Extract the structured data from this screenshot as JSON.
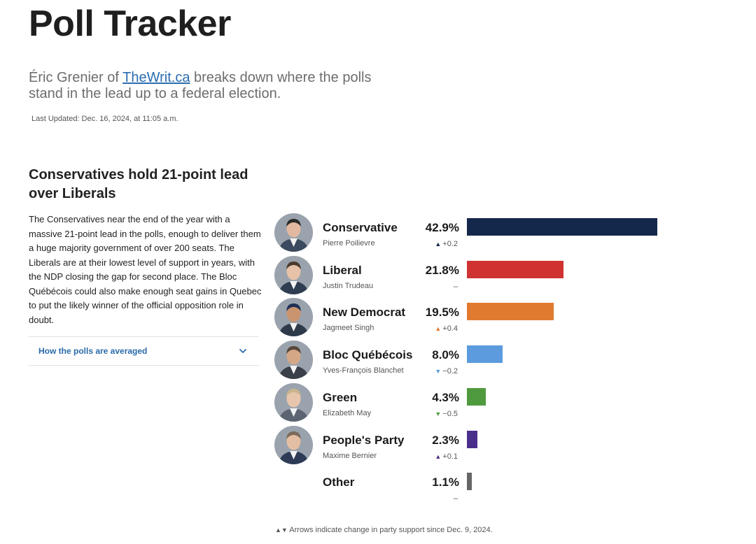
{
  "header": {
    "title": "Poll Tracker",
    "subtitle_prefix": "Éric Grenier of ",
    "subtitle_link": "TheWrit.ca",
    "subtitle_suffix": " breaks down where the polls stand in the lead up to a federal election.",
    "last_updated": "Last Updated: Dec. 16, 2024, at 11:05 a.m."
  },
  "story": {
    "heading": "Conservatives hold 21-point lead over Liberals",
    "body": "The Conservatives near the end of the year with a massive 21-point lead in the polls, enough to deliver them a huge majority government of over 200 seats. The Liberals are at their lowest level of support in years, with the NDP closing the gap for second place. The Bloc Québécois could also make enough seat gains in Quebec to put the likely winner of the official opposition role in doubt.",
    "accordion_label": "How the polls are averaged"
  },
  "chart_data": {
    "type": "bar",
    "orientation": "horizontal",
    "categories": [
      "Conservative",
      "Liberal",
      "New Democrat",
      "Bloc Québécois",
      "Green",
      "People's Party",
      "Other"
    ],
    "values": [
      42.9,
      21.8,
      19.5,
      8.0,
      4.3,
      2.3,
      1.1
    ],
    "value_labels": [
      "42.9%",
      "21.8%",
      "19.5%",
      "8.0%",
      "4.3%",
      "2.3%",
      "1.1%"
    ],
    "leaders": [
      "Pierre Poilievre",
      "Justin Trudeau",
      "Jagmeet Singh",
      "Yves-François Blanchet",
      "Elizabeth May",
      "Maxime Bernier",
      ""
    ],
    "change_direction": [
      "up",
      "none",
      "up",
      "down",
      "down",
      "up",
      "none"
    ],
    "change_text": [
      "+0.2",
      "–",
      "+0.4",
      "−0.2",
      "−0.5",
      "+0.1",
      "–"
    ],
    "colors": [
      "#14284b",
      "#d03232",
      "#e07a2e",
      "#5b9bde",
      "#4f9a3e",
      "#4a2e8c",
      "#666666"
    ],
    "arrow_colors": [
      "#14284b",
      "#555555",
      "#e07a2e",
      "#5b9bde",
      "#4f9a3e",
      "#4a2e8c",
      "#555555"
    ],
    "xlim": [
      0,
      50
    ],
    "footnote": "Arrows indicate change in party support since Dec. 9, 2024."
  }
}
